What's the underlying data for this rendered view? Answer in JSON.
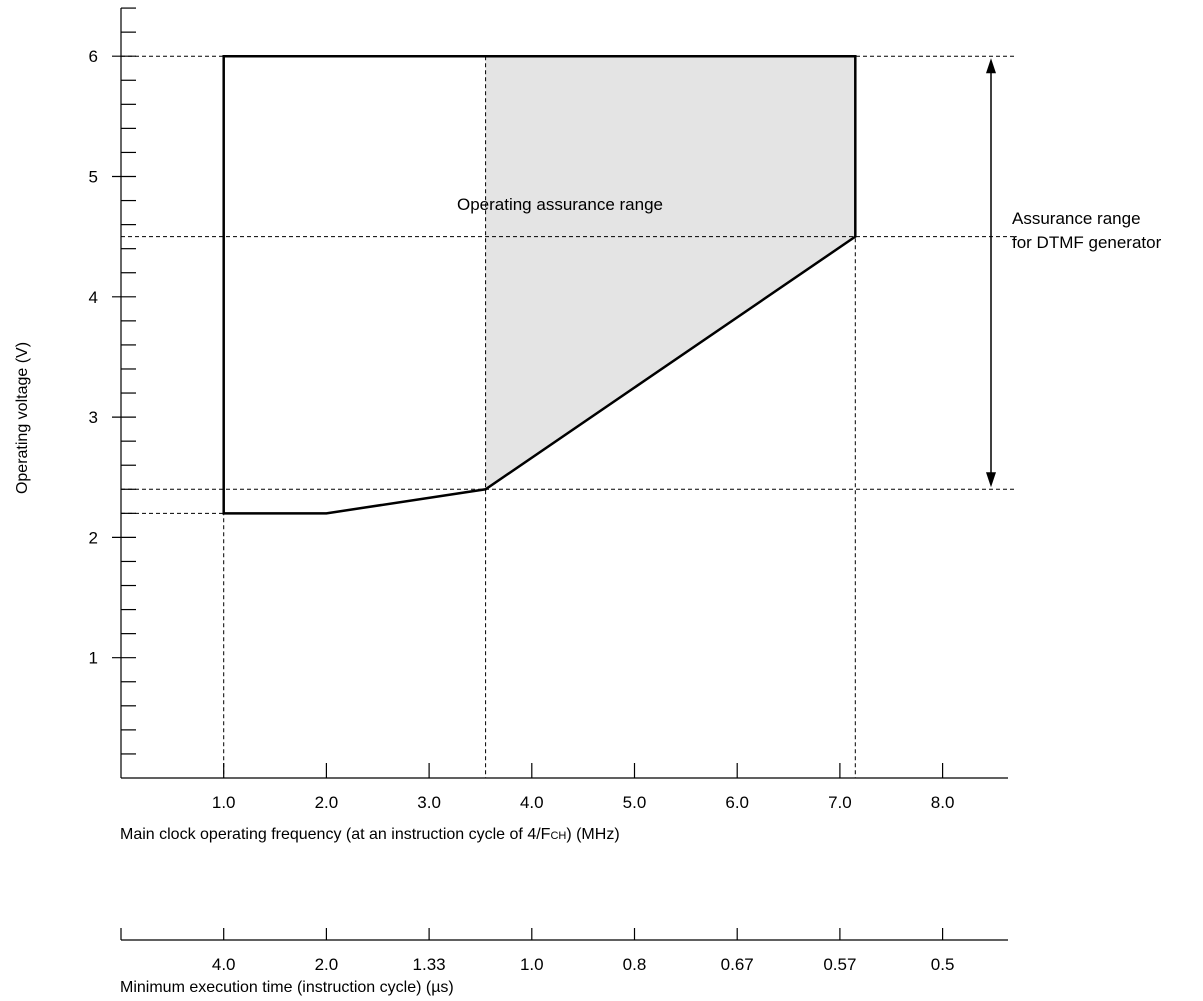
{
  "chart_data": {
    "type": "area",
    "x_axis": {
      "label": "Main clock operating frequency (at an instruction cycle of 4/F",
      "label_sub": "CH",
      "label_tail": ") (MHz)",
      "ticks": [
        1.0,
        2.0,
        3.0,
        4.0,
        5.0,
        6.0,
        7.0,
        8.0
      ],
      "tick_labels": [
        "1.0",
        "2.0",
        "3.0",
        "4.0",
        "5.0",
        "6.0",
        "7.0",
        "8.0"
      ],
      "range": [
        0,
        8.65
      ]
    },
    "secondary_x_axis": {
      "label": "Minimum execution time (instruction cycle) (µs)",
      "tick_labels": [
        "4.0",
        "2.0",
        "1.33",
        "1.0",
        "0.8",
        "0.67",
        "0.57",
        "0.5"
      ],
      "tick_positions_mhz": [
        1.0,
        2.0,
        3.0,
        4.0,
        5.0,
        6.0,
        7.0,
        8.0
      ]
    },
    "y_axis": {
      "label": "Operating voltage (V)",
      "ticks": [
        1,
        2,
        3,
        4,
        5,
        6
      ],
      "tick_labels": [
        "1",
        "2",
        "3",
        "4",
        "5",
        "6"
      ],
      "minor_step": 0.2,
      "range": [
        0,
        6.4
      ]
    },
    "operating_range": {
      "label": "Operating assurance range",
      "boundary": [
        [
          1.0,
          6.0
        ],
        [
          7.15,
          6.0
        ],
        [
          7.15,
          4.5
        ],
        [
          3.55,
          2.4
        ],
        [
          2.0,
          2.2
        ],
        [
          1.0,
          2.2
        ]
      ]
    },
    "dtmf_range": {
      "label_lines": [
        "Assurance range",
        "for DTMF generator"
      ],
      "region": [
        [
          3.55,
          6.0
        ],
        [
          7.15,
          6.0
        ],
        [
          7.15,
          4.5
        ],
        [
          3.55,
          2.4
        ]
      ],
      "voltage_span": [
        2.4,
        6.0
      ]
    },
    "reference_lines": {
      "voltages": [
        6.0,
        4.5,
        2.4,
        2.2
      ],
      "frequencies": [
        1.0,
        3.55,
        7.15
      ]
    }
  }
}
